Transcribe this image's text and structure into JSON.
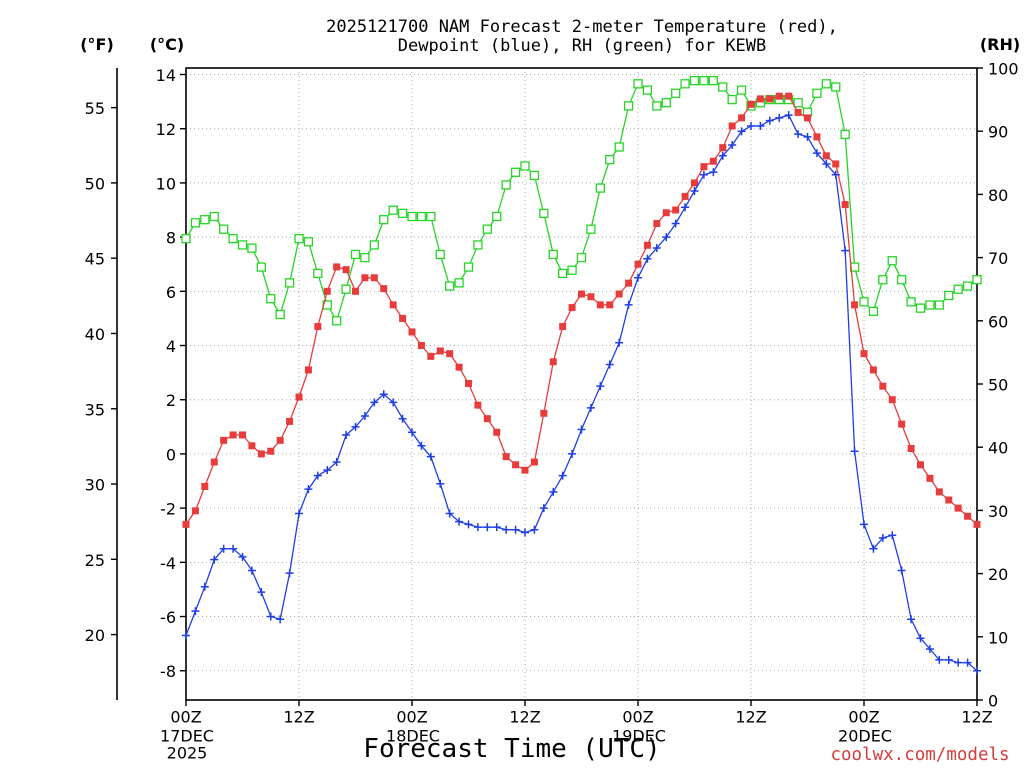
{
  "title": {
    "lead": "2025121700 NAM Forecast",
    "comma1": ",",
    "comma2": ",",
    "tail": "for KEWB"
  },
  "chart_data": {
    "type": "line",
    "xlabel": "Forecast Time (UTC)",
    "x_range": [
      0,
      84
    ],
    "x": [
      0,
      1,
      2,
      3,
      4,
      5,
      6,
      7,
      8,
      9,
      10,
      11,
      12,
      13,
      14,
      15,
      16,
      17,
      18,
      19,
      20,
      21,
      22,
      23,
      24,
      25,
      26,
      27,
      28,
      29,
      30,
      31,
      32,
      33,
      34,
      35,
      36,
      37,
      38,
      39,
      40,
      41,
      42,
      43,
      44,
      45,
      46,
      47,
      48,
      49,
      50,
      51,
      52,
      53,
      54,
      55,
      56,
      57,
      58,
      59,
      60,
      61,
      62,
      63,
      64,
      65,
      66,
      67,
      68,
      69,
      70,
      71,
      72,
      73,
      74,
      75,
      76,
      77,
      78,
      79,
      80,
      81,
      82,
      83,
      84
    ],
    "x_ticks": [
      {
        "hour": 0,
        "label": "00Z",
        "date": "17DEC",
        "year": "2025"
      },
      {
        "hour": 12,
        "label": "12Z"
      },
      {
        "hour": 24,
        "label": "00Z",
        "date": "18DEC"
      },
      {
        "hour": 36,
        "label": "12Z"
      },
      {
        "hour": 48,
        "label": "00Z",
        "date": "19DEC"
      },
      {
        "hour": 60,
        "label": "12Z"
      },
      {
        "hour": 72,
        "label": "00Z",
        "date": "20DEC"
      },
      {
        "hour": 84,
        "label": "12Z"
      }
    ],
    "grid": true,
    "y_axes": [
      {
        "label": "(°C)",
        "range": [
          -9.08,
          14.24
        ],
        "ticks": [
          14,
          12,
          10,
          8,
          6,
          4,
          2,
          0,
          -2,
          -4,
          -6,
          -8
        ]
      },
      {
        "label": "(RH)",
        "range": [
          0,
          100
        ],
        "ticks": [
          100,
          90,
          80,
          70,
          60,
          50,
          40,
          30,
          20,
          10,
          0
        ]
      }
    ],
    "f_axis": {
      "label": "(°F)",
      "ticks": [
        55,
        50,
        45,
        40,
        35,
        30,
        25,
        20
      ]
    },
    "series": [
      {
        "name": "2-meter Temperature (red)",
        "y_axis_index": 0,
        "color": "#e83c3c",
        "values": [
          -2.6,
          -2.1,
          -1.2,
          -0.3,
          0.5,
          0.7,
          0.7,
          0.3,
          0.0,
          0.1,
          0.5,
          1.2,
          2.1,
          3.1,
          4.7,
          6.0,
          6.9,
          6.8,
          6.0,
          6.5,
          6.5,
          6.1,
          5.5,
          5.0,
          4.5,
          4.0,
          3.6,
          3.8,
          3.7,
          3.2,
          2.6,
          1.8,
          1.3,
          0.8,
          -0.1,
          -0.4,
          -0.6,
          -0.3,
          1.5,
          3.4,
          4.7,
          5.4,
          5.9,
          5.8,
          5.5,
          5.5,
          5.9,
          6.3,
          7.0,
          7.7,
          8.5,
          8.9,
          9.0,
          9.5,
          10.0,
          10.6,
          10.8,
          11.3,
          12.1,
          12.4,
          12.9,
          13.1,
          13.1,
          13.2,
          13.2,
          12.6,
          12.4,
          11.7,
          11.0,
          10.7,
          9.2,
          5.5,
          3.7,
          3.1,
          2.5,
          2.0,
          1.1,
          0.2,
          -0.4,
          -0.9,
          -1.4,
          -1.7,
          -2.0,
          -2.3,
          -2.6
        ]
      },
      {
        "name": "Dewpoint (blue)",
        "y_axis_index": 0,
        "color": "#1f3fe6",
        "values": [
          -6.7,
          -5.8,
          -4.9,
          -3.9,
          -3.5,
          -3.5,
          -3.8,
          -4.3,
          -5.1,
          -6.0,
          -6.1,
          -4.4,
          -2.2,
          -1.3,
          -0.8,
          -0.6,
          -0.3,
          0.7,
          1.0,
          1.4,
          1.9,
          2.2,
          1.9,
          1.3,
          0.8,
          0.3,
          -0.1,
          -1.1,
          -2.2,
          -2.5,
          -2.6,
          -2.7,
          -2.7,
          -2.7,
          -2.8,
          -2.8,
          -2.9,
          -2.8,
          -2.0,
          -1.4,
          -0.8,
          0.0,
          0.9,
          1.7,
          2.5,
          3.3,
          4.1,
          5.5,
          6.5,
          7.2,
          7.6,
          8.0,
          8.5,
          9.1,
          9.7,
          10.3,
          10.4,
          11.0,
          11.4,
          11.9,
          12.1,
          12.1,
          12.3,
          12.4,
          12.5,
          11.8,
          11.7,
          11.1,
          10.7,
          10.3,
          7.5,
          0.1,
          -2.6,
          -3.5,
          -3.1,
          -3.0,
          -4.3,
          -6.1,
          -6.8,
          -7.2,
          -7.6,
          -7.6,
          -7.7,
          -7.7,
          -8.0
        ]
      },
      {
        "name": "RH (green)",
        "y_axis_index": 1,
        "color": "#26d426",
        "values": [
          73,
          75.5,
          76,
          76.5,
          74.5,
          73,
          72,
          71.5,
          68.5,
          63.5,
          61,
          66,
          73,
          72.5,
          67.5,
          62.5,
          60,
          65,
          70.5,
          70,
          72,
          76,
          77.5,
          77,
          76.5,
          76.5,
          76.5,
          70.5,
          65.5,
          66,
          68.5,
          72,
          74.5,
          76.5,
          81.5,
          83.5,
          84.5,
          83,
          77,
          70.5,
          67.5,
          68,
          70,
          74.5,
          81,
          85.5,
          87.5,
          94,
          97.5,
          96.5,
          94,
          94.5,
          96,
          97.5,
          98,
          98,
          98,
          97,
          95,
          96.5,
          94,
          94.5,
          95,
          95,
          95,
          94.5,
          93,
          96,
          97.5,
          97,
          89.5,
          68.5,
          63,
          61.5,
          66.5,
          69.5,
          66.5,
          63,
          62,
          62.5,
          62.5,
          64,
          65,
          65.5,
          66.5
        ]
      }
    ]
  },
  "watermark": "coolwx.com/models"
}
